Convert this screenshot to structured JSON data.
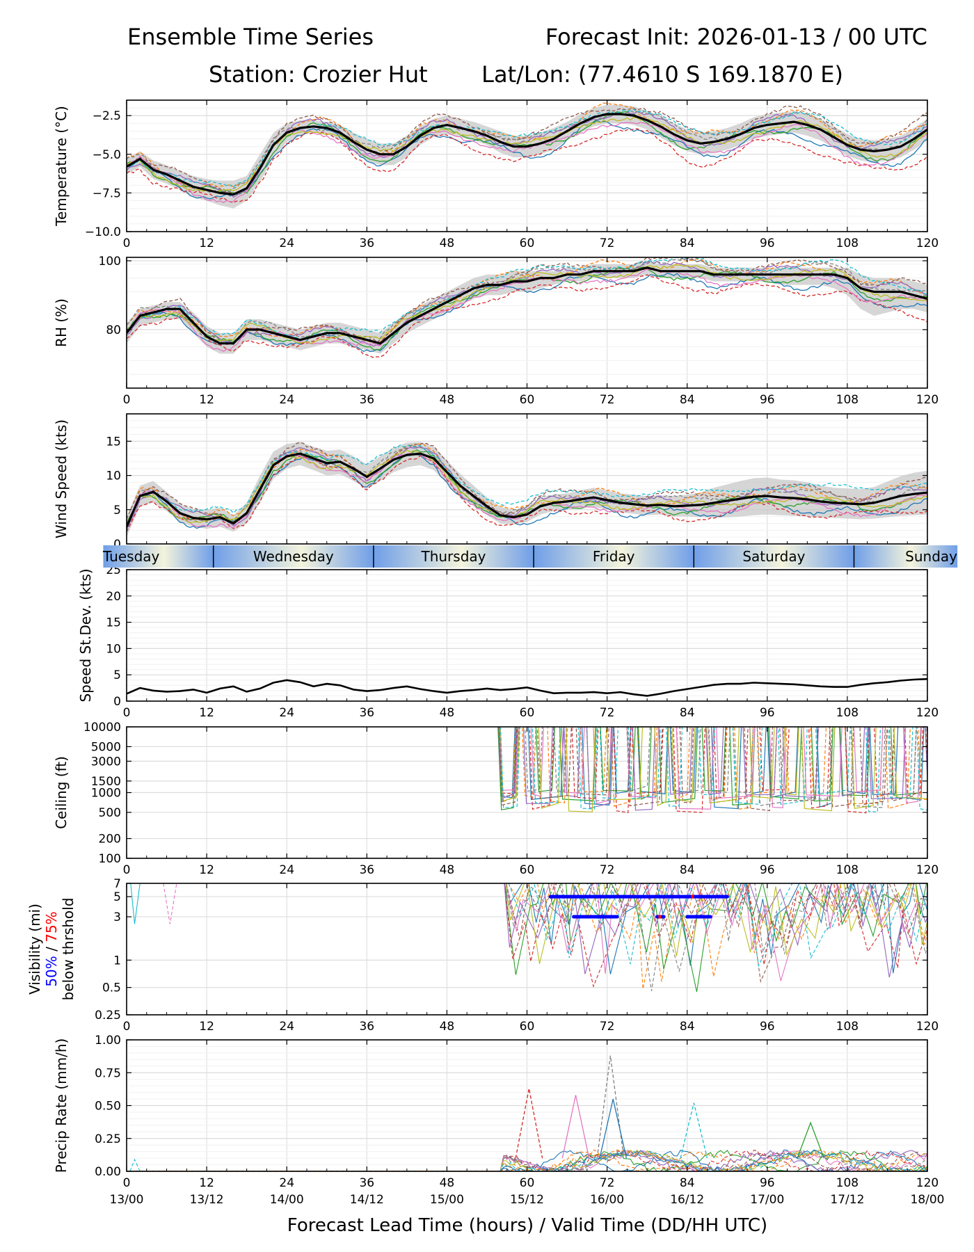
{
  "header": {
    "title_left": "Ensemble Time Series",
    "title_right": "Forecast Init: 2026-01-13 / 00 UTC",
    "station": "Station: Crozier Hut",
    "latlon": "Lat/Lon: (77.4610 S 169.1870 E)"
  },
  "x_axis": {
    "label": "Forecast Lead Time (hours) / Valid Time (DD/HH UTC)",
    "ticks": [
      "0",
      "12",
      "24",
      "36",
      "48",
      "60",
      "72",
      "84",
      "96",
      "108",
      "120"
    ],
    "valid_times": [
      "13/00",
      "13/12",
      "14/00",
      "14/12",
      "15/00",
      "15/12",
      "16/00",
      "16/12",
      "17/00",
      "17/12",
      "18/00"
    ]
  },
  "day_band": {
    "days": [
      "Tuesday",
      "Wednesday",
      "Thursday",
      "Friday",
      "Saturday",
      "Sunday"
    ]
  },
  "colors": {
    "mean": "#000000",
    "spread": "#c8c8c8",
    "vis50": "#0000ff",
    "vis75": "#ff0000",
    "day_light": "#f4f4dc",
    "day_dark": "#6f9ee8",
    "members": [
      "#1f77b4",
      "#ff7f0e",
      "#2ca02c",
      "#d62728",
      "#9467bd",
      "#8c564b",
      "#e377c2",
      "#7f7f7f",
      "#bcbd22",
      "#17becf"
    ]
  },
  "chart_data": [
    {
      "type": "line",
      "id": "temperature",
      "ylabel": "Temperature (°C)",
      "ylim": [
        -10,
        -1.5
      ],
      "yticks": [
        -10.0,
        -7.5,
        -5.0,
        -2.5
      ],
      "ytick_labels": [
        "−10.0",
        "−7.5",
        "−5.0",
        "−2.5"
      ],
      "x": [
        0,
        2,
        4,
        6,
        8,
        10,
        12,
        14,
        16,
        18,
        20,
        22,
        24,
        26,
        28,
        30,
        32,
        34,
        36,
        38,
        40,
        42,
        44,
        46,
        48,
        50,
        52,
        54,
        56,
        58,
        60,
        62,
        64,
        66,
        68,
        70,
        72,
        74,
        76,
        78,
        80,
        82,
        84,
        86,
        88,
        90,
        92,
        94,
        96,
        98,
        100,
        102,
        104,
        106,
        108,
        110,
        112,
        114,
        116,
        118,
        120
      ],
      "mean": [
        -5.8,
        -5.3,
        -6.0,
        -6.3,
        -6.7,
        -7.1,
        -7.3,
        -7.5,
        -7.6,
        -7.2,
        -5.9,
        -4.4,
        -3.6,
        -3.3,
        -3.2,
        -3.3,
        -3.6,
        -4.2,
        -4.7,
        -5.0,
        -5.0,
        -4.5,
        -3.8,
        -3.3,
        -3.1,
        -3.3,
        -3.5,
        -3.8,
        -4.2,
        -4.5,
        -4.5,
        -4.3,
        -4.0,
        -3.5,
        -3.0,
        -2.6,
        -2.4,
        -2.4,
        -2.5,
        -2.8,
        -3.2,
        -3.7,
        -4.1,
        -4.3,
        -4.2,
        -4.0,
        -3.7,
        -3.3,
        -3.1,
        -3.0,
        -2.9,
        -3.1,
        -3.4,
        -3.9,
        -4.4,
        -4.7,
        -4.8,
        -4.7,
        -4.5,
        -4.0,
        -3.4
      ],
      "spread_lo": [
        -6.3,
        -5.8,
        -6.6,
        -6.9,
        -7.3,
        -7.8,
        -8.0,
        -8.3,
        -8.5,
        -8.0,
        -6.8,
        -5.2,
        -4.2,
        -3.8,
        -3.6,
        -3.7,
        -4.1,
        -4.8,
        -5.4,
        -5.7,
        -5.7,
        -5.2,
        -4.4,
        -3.9,
        -3.7,
        -3.9,
        -4.1,
        -4.4,
        -4.9,
        -5.2,
        -5.2,
        -5.0,
        -4.7,
        -4.1,
        -3.6,
        -3.2,
        -3.0,
        -3.0,
        -3.1,
        -3.4,
        -3.9,
        -4.4,
        -4.8,
        -5.0,
        -4.9,
        -4.7,
        -4.4,
        -4.0,
        -3.8,
        -3.7,
        -3.6,
        -3.8,
        -4.1,
        -4.6,
        -5.1,
        -5.4,
        -5.5,
        -5.4,
        -5.2,
        -4.7,
        -4.1
      ],
      "spread_hi": [
        -5.3,
        -4.8,
        -5.4,
        -5.7,
        -6.1,
        -6.4,
        -6.6,
        -6.7,
        -6.7,
        -6.4,
        -5.0,
        -3.6,
        -3.0,
        -2.8,
        -2.8,
        -2.9,
        -3.1,
        -3.6,
        -4.0,
        -4.3,
        -4.3,
        -3.8,
        -3.2,
        -2.7,
        -2.5,
        -2.7,
        -2.9,
        -3.2,
        -3.5,
        -3.8,
        -3.8,
        -3.6,
        -3.3,
        -2.9,
        -2.4,
        -2.0,
        -1.8,
        -1.8,
        -1.9,
        -2.2,
        -2.5,
        -3.0,
        -3.4,
        -3.6,
        -3.5,
        -3.3,
        -3.0,
        -2.6,
        -2.4,
        -2.3,
        -2.2,
        -2.4,
        -2.7,
        -3.2,
        -3.7,
        -4.0,
        -4.1,
        -4.0,
        -3.8,
        -3.3,
        -2.7
      ],
      "member_offsets": [
        -0.8,
        0.5,
        -0.3,
        -1.4,
        0.2,
        0.8,
        -0.6,
        0.4,
        -0.1,
        0.6
      ],
      "member_phase": [
        0.0,
        1.1,
        2.3,
        3.0,
        4.2,
        5.1,
        0.7,
        1.9,
        2.8,
        3.9
      ]
    },
    {
      "type": "line",
      "id": "rh",
      "ylabel": "RH (%)",
      "ylim": [
        63,
        101
      ],
      "yticks": [
        80,
        100
      ],
      "ytick_labels": [
        "80",
        "100"
      ],
      "x": [
        0,
        2,
        4,
        6,
        8,
        10,
        12,
        14,
        16,
        18,
        20,
        22,
        24,
        26,
        28,
        30,
        32,
        34,
        36,
        38,
        40,
        42,
        44,
        46,
        48,
        50,
        52,
        54,
        56,
        58,
        60,
        62,
        64,
        66,
        68,
        70,
        72,
        74,
        76,
        78,
        80,
        82,
        84,
        86,
        88,
        90,
        92,
        94,
        96,
        98,
        100,
        102,
        104,
        106,
        108,
        110,
        112,
        114,
        116,
        118,
        120
      ],
      "mean": [
        79,
        84,
        85,
        86,
        86,
        82,
        78,
        76,
        76,
        80,
        80,
        79,
        78,
        77,
        78,
        79,
        79,
        78,
        77,
        76,
        79,
        82,
        84,
        86,
        88,
        90,
        92,
        93,
        93,
        94,
        94,
        95,
        95,
        96,
        96,
        97,
        97,
        97,
        97,
        98,
        97,
        97,
        97,
        97,
        96,
        96,
        96,
        96,
        96,
        96,
        96,
        96,
        96,
        96,
        95,
        92,
        91,
        91,
        91,
        90,
        89
      ],
      "spread_lo": [
        76,
        81,
        82,
        83,
        83,
        79,
        75,
        73,
        73,
        77,
        77,
        76,
        75,
        74,
        75,
        76,
        76,
        75,
        74,
        73,
        76,
        79,
        81,
        83,
        85,
        87,
        89,
        90,
        90,
        91,
        91,
        92,
        93,
        94,
        94,
        95,
        95,
        95,
        95,
        96,
        95,
        95,
        95,
        95,
        94,
        94,
        94,
        94,
        94,
        93,
        93,
        93,
        93,
        92,
        90,
        86,
        84,
        85,
        86,
        86,
        85
      ],
      "spread_hi": [
        82,
        86,
        87,
        88,
        88,
        85,
        81,
        79,
        79,
        83,
        83,
        82,
        81,
        80,
        81,
        82,
        82,
        81,
        80,
        79,
        82,
        85,
        87,
        89,
        91,
        93,
        95,
        96,
        96,
        97,
        97,
        97,
        97,
        98,
        98,
        99,
        99,
        99,
        99,
        100,
        99,
        99,
        99,
        99,
        98,
        98,
        98,
        98,
        98,
        98,
        98,
        98,
        98,
        98,
        98,
        96,
        95,
        95,
        95,
        94,
        93
      ],
      "member_offsets": [
        -3,
        2,
        -1,
        -5,
        1,
        3,
        -2,
        2,
        0,
        3
      ],
      "member_phase": [
        0.5,
        1.6,
        2.2,
        3.1,
        4.0,
        5.2,
        0.9,
        1.4,
        2.7,
        3.6
      ]
    },
    {
      "type": "line",
      "id": "wind_speed",
      "ylabel": "Wind Speed (kts)",
      "ylim": [
        0,
        19
      ],
      "yticks": [
        0,
        5,
        10,
        15
      ],
      "ytick_labels": [
        "0",
        "5",
        "10",
        "15"
      ],
      "x": [
        0,
        2,
        4,
        6,
        8,
        10,
        12,
        14,
        16,
        18,
        20,
        22,
        24,
        26,
        28,
        30,
        32,
        34,
        36,
        38,
        40,
        42,
        44,
        46,
        48,
        50,
        52,
        54,
        56,
        58,
        60,
        62,
        64,
        66,
        68,
        70,
        72,
        74,
        76,
        78,
        80,
        82,
        84,
        86,
        88,
        90,
        92,
        94,
        96,
        98,
        100,
        102,
        104,
        106,
        108,
        110,
        112,
        114,
        116,
        118,
        120
      ],
      "mean": [
        2.5,
        7.0,
        7.6,
        6.2,
        4.5,
        3.8,
        3.6,
        3.9,
        3.0,
        4.5,
        8.0,
        11.5,
        12.8,
        13.2,
        12.5,
        11.8,
        12.0,
        11.0,
        9.8,
        11.0,
        12.3,
        13.0,
        13.2,
        12.5,
        10.5,
        8.5,
        7.0,
        5.5,
        4.2,
        3.9,
        4.3,
        5.5,
        6.0,
        6.2,
        6.5,
        6.8,
        6.4,
        6.0,
        5.8,
        5.6,
        5.7,
        5.5,
        5.6,
        5.7,
        6.0,
        6.3,
        6.6,
        6.9,
        7.0,
        6.8,
        6.7,
        6.5,
        6.2,
        6.0,
        5.9,
        5.8,
        6.0,
        6.5,
        7.0,
        7.3,
        7.5
      ],
      "spread_lo": [
        1.0,
        5.5,
        6.0,
        4.8,
        3.2,
        2.5,
        2.2,
        2.5,
        1.8,
        3.0,
        6.0,
        9.5,
        11.0,
        11.5,
        10.8,
        10.0,
        10.2,
        9.2,
        8.0,
        9.2,
        10.5,
        11.2,
        11.5,
        10.8,
        8.8,
        6.8,
        5.5,
        4.2,
        3.0,
        2.8,
        3.2,
        4.3,
        4.8,
        5.0,
        5.2,
        5.4,
        5.0,
        4.6,
        4.4,
        4.2,
        4.3,
        4.0,
        4.0,
        3.9,
        3.8,
        3.9,
        4.0,
        4.2,
        4.3,
        4.2,
        4.1,
        4.0,
        3.9,
        3.8,
        3.7,
        3.6,
        3.7,
        3.9,
        4.1,
        4.2,
        4.3
      ],
      "spread_hi": [
        4.0,
        8.5,
        9.2,
        7.6,
        5.8,
        5.1,
        5.0,
        5.3,
        4.2,
        6.0,
        10.0,
        13.5,
        14.6,
        14.9,
        14.2,
        13.6,
        13.8,
        12.8,
        11.6,
        12.8,
        14.1,
        14.8,
        14.9,
        14.2,
        12.2,
        10.2,
        8.5,
        6.8,
        5.4,
        5.0,
        5.4,
        6.7,
        7.2,
        7.4,
        7.8,
        8.2,
        7.8,
        7.4,
        7.2,
        7.0,
        7.1,
        7.0,
        7.2,
        7.5,
        8.2,
        8.7,
        9.2,
        9.6,
        9.7,
        9.4,
        9.3,
        9.0,
        8.5,
        8.2,
        8.1,
        8.0,
        8.3,
        9.1,
        9.9,
        10.4,
        10.7
      ],
      "member_offsets": [
        -1.5,
        1.0,
        -0.5,
        -2.0,
        0.5,
        1.5,
        -1.0,
        0.8,
        -0.2,
        2.0
      ],
      "member_phase": [
        0.3,
        1.2,
        2.1,
        3.3,
        4.4,
        5.0,
        0.8,
        1.7,
        2.6,
        3.8
      ]
    },
    {
      "type": "line",
      "id": "speed_stdev",
      "ylabel": "Speed St.Dev. (kts)",
      "ylim": [
        0,
        25
      ],
      "yticks": [
        0,
        5,
        10,
        15,
        20,
        25
      ],
      "ytick_labels": [
        "0",
        "5",
        "10",
        "15",
        "20",
        "25"
      ],
      "x": [
        0,
        2,
        4,
        6,
        8,
        10,
        12,
        14,
        16,
        18,
        20,
        22,
        24,
        26,
        28,
        30,
        32,
        34,
        36,
        38,
        40,
        42,
        44,
        46,
        48,
        50,
        52,
        54,
        56,
        58,
        60,
        62,
        64,
        66,
        68,
        70,
        72,
        74,
        76,
        78,
        80,
        82,
        84,
        86,
        88,
        90,
        92,
        94,
        96,
        98,
        100,
        102,
        104,
        106,
        108,
        110,
        112,
        114,
        116,
        118,
        120
      ],
      "mean": [
        1.4,
        2.5,
        2.0,
        1.8,
        1.9,
        2.2,
        1.6,
        2.4,
        2.8,
        1.8,
        2.4,
        3.5,
        4.0,
        3.6,
        2.8,
        3.3,
        3.0,
        2.2,
        1.9,
        2.1,
        2.5,
        2.8,
        2.3,
        1.9,
        1.6,
        1.9,
        2.1,
        2.4,
        2.1,
        2.3,
        2.6,
        2.0,
        1.5,
        1.6,
        1.6,
        1.7,
        1.5,
        1.7,
        1.3,
        1.0,
        1.4,
        1.9,
        2.3,
        2.7,
        3.1,
        3.3,
        3.3,
        3.5,
        3.4,
        3.3,
        3.2,
        3.0,
        2.8,
        2.7,
        2.7,
        3.1,
        3.4,
        3.6,
        3.9,
        4.1,
        4.2
      ]
    },
    {
      "type": "line",
      "id": "ceiling",
      "scale": "log",
      "ylabel": "Ceiling (ft)",
      "ylim": [
        100,
        10000
      ],
      "yticks": [
        100,
        200,
        500,
        1000,
        1500,
        3000,
        5000,
        10000
      ],
      "ytick_labels": [
        "100",
        "200",
        "500",
        "1000",
        "1500",
        "3000",
        "5000",
        "10000"
      ],
      "active_hours": [
        53,
        120
      ],
      "typical_low_ft": [
        500,
        1100
      ]
    },
    {
      "type": "line",
      "id": "visibility",
      "scale": "log",
      "ylabel": "Visibility (mi)",
      "ylabel_50": "50%",
      "ylabel_slash": " / ",
      "ylabel_75": "75%",
      "ylabel_below": "below thrshold",
      "ylim": [
        0.25,
        7
      ],
      "yticks": [
        0.25,
        0.5,
        1,
        3,
        5,
        7
      ],
      "ytick_labels": [
        "0.25",
        "0.5",
        "1",
        "3",
        "5",
        "7"
      ],
      "active_hours": [
        56,
        120
      ],
      "threshold_50": [
        {
          "value": 5,
          "from": 63.5,
          "to": 90
        },
        {
          "value": 3,
          "from": 67,
          "to": 73.5
        },
        {
          "value": 3,
          "from": 79.5,
          "to": 80.5
        },
        {
          "value": 3,
          "from": 84,
          "to": 87.5
        }
      ],
      "threshold_75": [
        {
          "value": 3,
          "from": 79.7,
          "to": 80.1
        },
        {
          "value": 5,
          "from": 84.6,
          "to": 85.0
        }
      ]
    },
    {
      "type": "line",
      "id": "precip_rate",
      "ylabel": "Precip Rate (mm/h)",
      "ylim": [
        0,
        1.0
      ],
      "yticks": [
        0.0,
        0.25,
        0.5,
        0.75,
        1.0
      ],
      "ytick_labels": [
        "0.00",
        "0.25",
        "0.50",
        "0.75",
        "1.00"
      ],
      "active_hours": [
        56,
        120
      ],
      "peaks": [
        {
          "x": 72.5,
          "value": 0.88
        },
        {
          "x": 72.9,
          "value": 0.55
        },
        {
          "x": 60.3,
          "value": 0.63
        },
        {
          "x": 67.3,
          "value": 0.58
        },
        {
          "x": 85.0,
          "value": 0.52
        },
        {
          "x": 102.5,
          "value": 0.37
        }
      ]
    }
  ]
}
